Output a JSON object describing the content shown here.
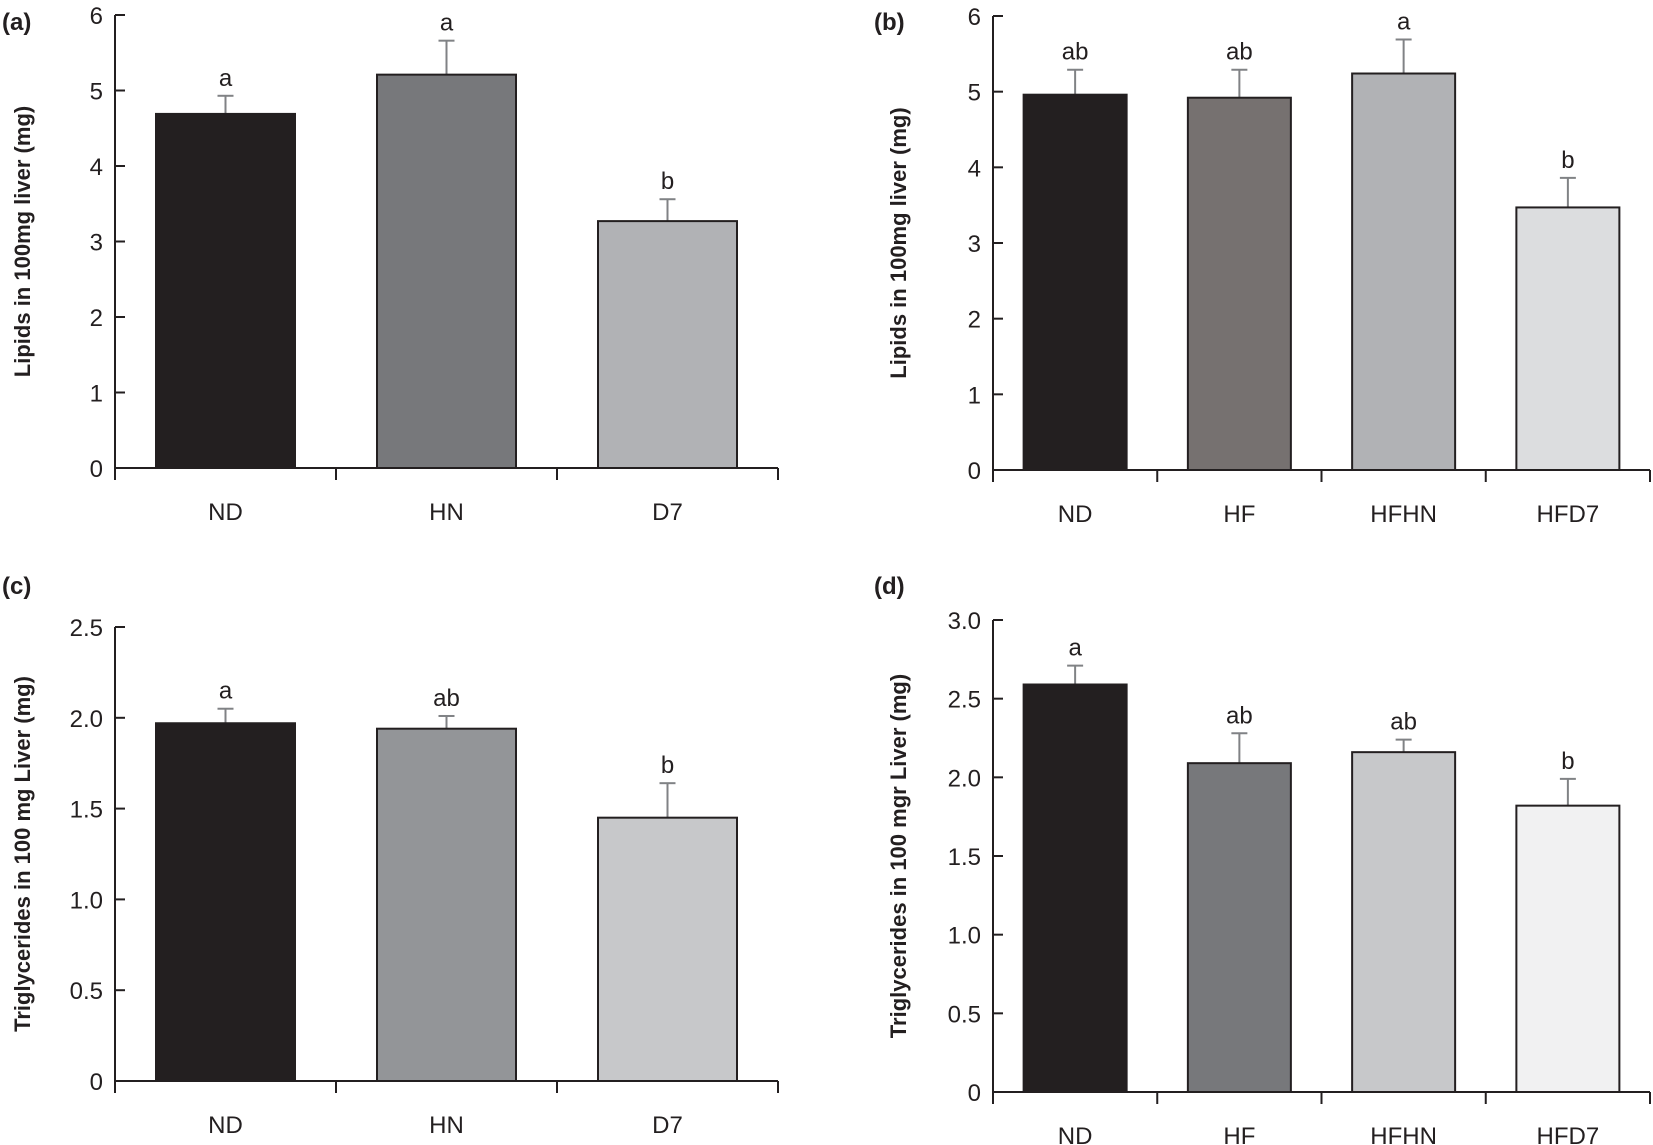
{
  "chart_data": [
    {
      "panel": "(a)",
      "type": "bar",
      "title": "",
      "xlabel": "",
      "ylabel": "Lipids in 100mg liver (mg)",
      "ylim": [
        0,
        6
      ],
      "yticks": [
        "0",
        "1",
        "2",
        "3",
        "4",
        "5",
        "6"
      ],
      "ytick_values": [
        0,
        1,
        2,
        3,
        4,
        5,
        6
      ],
      "categories": [
        "ND",
        "HN",
        "D7"
      ],
      "values": [
        4.69,
        5.21,
        3.27
      ],
      "error_upper": [
        4.93,
        5.66,
        3.56
      ],
      "significance": [
        "a",
        "a",
        "b"
      ],
      "colors": [
        "#231f20",
        "#77787b",
        "#b1b2b5"
      ]
    },
    {
      "panel": "(b)",
      "type": "bar",
      "title": "",
      "xlabel": "",
      "ylabel": "Lipids in 100mg liver (mg)",
      "ylim": [
        0,
        6
      ],
      "yticks": [
        "0",
        "1",
        "2",
        "3",
        "4",
        "5",
        "6"
      ],
      "ytick_values": [
        0,
        1,
        2,
        3,
        4,
        5,
        6
      ],
      "categories": [
        "ND",
        "HF",
        "HFHN",
        "HFD7"
      ],
      "values": [
        4.96,
        4.92,
        5.24,
        3.47
      ],
      "error_upper": [
        5.29,
        5.29,
        5.69,
        3.86
      ],
      "significance": [
        "ab",
        "ab",
        "a",
        "b"
      ],
      "colors": [
        "#231f20",
        "#767170",
        "#b1b2b5",
        "#dcdddf"
      ]
    },
    {
      "panel": "(c)",
      "type": "bar",
      "title": "",
      "xlabel": "",
      "ylabel": "Triglycerides in 100 mg Liver (mg)",
      "ylim": [
        0,
        2.5
      ],
      "yticks": [
        "0",
        "0.5",
        "1.0",
        "1.5",
        "2.0",
        "2.5"
      ],
      "ytick_values": [
        0,
        0.5,
        1.0,
        1.5,
        2.0,
        2.5
      ],
      "categories": [
        "ND",
        "HN",
        "D7"
      ],
      "values": [
        1.97,
        1.94,
        1.45
      ],
      "error_upper": [
        2.05,
        2.01,
        1.64
      ],
      "significance": [
        "a",
        "ab",
        "b"
      ],
      "colors": [
        "#231f20",
        "#939598",
        "#c7c8ca"
      ]
    },
    {
      "panel": "(d)",
      "type": "bar",
      "title": "",
      "xlabel": "",
      "ylabel": "Triglycerides in 100 mgr Liver (mg)",
      "ylim": [
        0,
        3.0
      ],
      "yticks": [
        "0",
        "0.5",
        "1.0",
        "1.5",
        "2.0",
        "2.5",
        "3.0"
      ],
      "ytick_values": [
        0,
        0.5,
        1.0,
        1.5,
        2.0,
        2.5,
        3.0
      ],
      "categories": [
        "ND",
        "HF",
        "HFHN",
        "HFD7"
      ],
      "values": [
        2.59,
        2.09,
        2.16,
        1.82
      ],
      "error_upper": [
        2.71,
        2.28,
        2.24,
        1.99
      ],
      "significance": [
        "a",
        "ab",
        "ab",
        "b"
      ],
      "colors": [
        "#231f20",
        "#77787b",
        "#c7c8ca",
        "#f1f1f2"
      ]
    }
  ],
  "style": {
    "axis_color": "#231f20",
    "error_bar_color": "#808285"
  }
}
